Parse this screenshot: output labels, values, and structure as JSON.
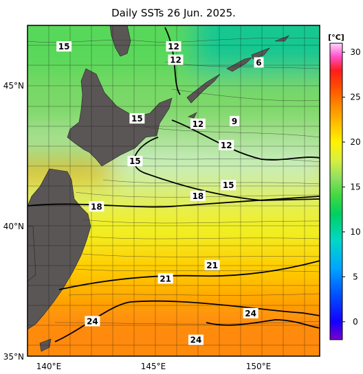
{
  "title": "Daily SSTs 26 Jun. 2025.",
  "colorbar": {
    "unit": "[°C]",
    "ticks": [
      "30",
      "25",
      "20",
      "15",
      "10",
      "5",
      "0"
    ],
    "range": [
      -2,
      31
    ],
    "stops": [
      {
        "v": -2,
        "color": "#7a00c8"
      },
      {
        "v": 0,
        "color": "#1400ff"
      },
      {
        "v": 3,
        "color": "#0050ff"
      },
      {
        "v": 6,
        "color": "#00a6ff"
      },
      {
        "v": 9,
        "color": "#00d8c8"
      },
      {
        "v": 12,
        "color": "#00d060"
      },
      {
        "v": 14,
        "color": "#40d840"
      },
      {
        "v": 16,
        "color": "#90e060"
      },
      {
        "v": 18,
        "color": "#d8ef40"
      },
      {
        "v": 20,
        "color": "#fff200"
      },
      {
        "v": 22,
        "color": "#ffc000"
      },
      {
        "v": 24,
        "color": "#ff8a00"
      },
      {
        "v": 26,
        "color": "#ff5000"
      },
      {
        "v": 28,
        "color": "#ff1c1c"
      },
      {
        "v": 29.5,
        "color": "#ff4fc8"
      },
      {
        "v": 31,
        "color": "#ffd6ff"
      }
    ]
  },
  "axes": {
    "lat_labels": [
      "45°N",
      "40°N",
      "35°N"
    ],
    "lon_labels": [
      "140°E",
      "145°E",
      "150°E"
    ]
  },
  "contour_labels": [
    {
      "text": "15",
      "lon": 140.8,
      "lat": 46.6
    },
    {
      "text": "12",
      "lon": 146.2,
      "lat": 46.6
    },
    {
      "text": "12",
      "lon": 146.3,
      "lat": 46.1
    },
    {
      "text": "6",
      "lon": 150.4,
      "lat": 46.0
    },
    {
      "text": "15",
      "lon": 144.4,
      "lat": 43.9
    },
    {
      "text": "12",
      "lon": 147.4,
      "lat": 43.7
    },
    {
      "text": "9",
      "lon": 149.2,
      "lat": 43.8
    },
    {
      "text": "12",
      "lon": 148.8,
      "lat": 42.9
    },
    {
      "text": "15",
      "lon": 144.3,
      "lat": 42.3
    },
    {
      "text": "15",
      "lon": 148.9,
      "lat": 41.4
    },
    {
      "text": "18",
      "lon": 147.4,
      "lat": 41.0
    },
    {
      "text": "18",
      "lon": 142.4,
      "lat": 40.6
    },
    {
      "text": "21",
      "lon": 148.1,
      "lat": 38.4
    },
    {
      "text": "21",
      "lon": 145.8,
      "lat": 37.9
    },
    {
      "text": "24",
      "lon": 150.0,
      "lat": 36.6
    },
    {
      "text": "24",
      "lon": 142.2,
      "lat": 36.3
    },
    {
      "text": "24",
      "lon": 147.3,
      "lat": 35.6
    }
  ]
}
